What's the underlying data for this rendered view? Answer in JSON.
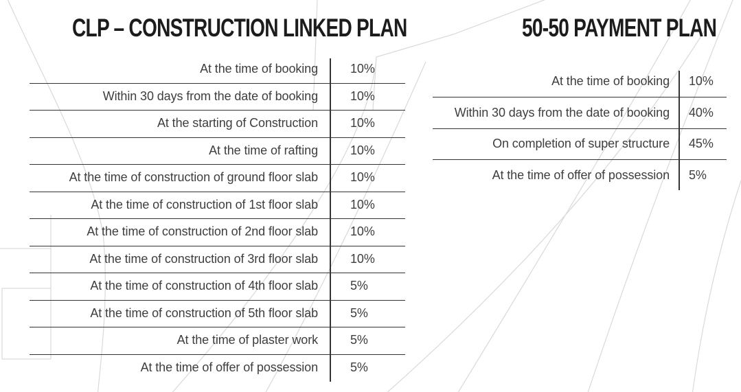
{
  "page": {
    "background_color": "#ffffff",
    "description": "Real-estate brochure page with two payment plan tables over light architectural sketch lines"
  },
  "colors": {
    "title_text": "#1c1c1c",
    "body_text": "#3e3e3e",
    "table_rule": "#333333",
    "decor_line": "#d9d9d9"
  },
  "left_table": {
    "title": "CLP – CONSTRUCTION LINKED PLAN",
    "rows": [
      {
        "label": "At the time of booking",
        "value": "10%"
      },
      {
        "label": "Within 30 days from the date of booking",
        "value": "10%"
      },
      {
        "label": "At the starting of Construction",
        "value": "10%"
      },
      {
        "label": "At the time of rafting",
        "value": "10%"
      },
      {
        "label": "At the time of construction of ground floor slab",
        "value": "10%"
      },
      {
        "label": "At the time of construction of 1st floor slab",
        "value": "10%"
      },
      {
        "label": "At the time of construction of 2nd floor slab",
        "value": "10%"
      },
      {
        "label": "At the time of construction of 3rd floor slab",
        "value": "10%"
      },
      {
        "label": "At the time of construction of 4th floor slab",
        "value": "5%"
      },
      {
        "label": "At the time of construction of 5th floor slab",
        "value": "5%"
      },
      {
        "label": "At the time of plaster work",
        "value": "5%"
      },
      {
        "label": "At the time of offer of possession",
        "value": "5%"
      }
    ]
  },
  "right_table": {
    "title": "50-50 PAYMENT PLAN",
    "rows": [
      {
        "label": "At the time of booking",
        "value": "10%"
      },
      {
        "label": "Within 30 days from the date of booking",
        "value": "40%"
      },
      {
        "label": "On completion of super structure",
        "value": "45%"
      },
      {
        "label": "At the time of offer of possession",
        "value": "5%"
      }
    ]
  }
}
